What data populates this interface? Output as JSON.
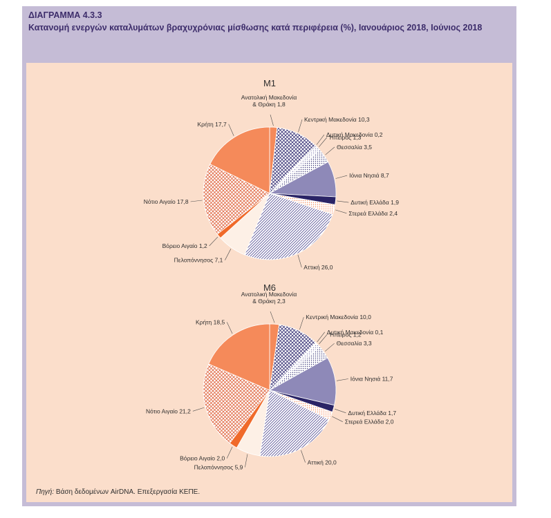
{
  "figure": {
    "label": "ΔΙΑΓΡΑΜΜΑ 4.3.3",
    "title": "Κατανομή ενεργών καταλυμάτων βραχυχρόνιας μίσθωσης κατά περιφέρεια (%), Ιανουάριος 2018, Ιούνιος 2018",
    "source_prefix": "Πηγή:",
    "source_text": " Βάση δεδομένων AirDNA. Επεξεργασία ΚΕΠΕ."
  },
  "styles": {
    "Ανατολική Μακεδονία & Θράκη": {
      "fill": "#f58a5a",
      "pattern": "solid"
    },
    "Κεντρική Μακεδονία": {
      "fill": "#3b3577",
      "pattern": "crosshatch"
    },
    "Δυτική Μακεδονία": {
      "fill": "#3b3577",
      "pattern": "solid"
    },
    "Ήπειρος": {
      "fill": "#8e89b8",
      "pattern": "dots"
    },
    "Θεσσαλία": {
      "fill": "#3b3577",
      "pattern": "dots"
    },
    "Ιόνια Νησιά": {
      "fill": "#8e89b8",
      "pattern": "solid"
    },
    "Δυτική Ελλάδα": {
      "fill": "#2a2466",
      "pattern": "solid"
    },
    "Στερεά Ελλάδα": {
      "fill": "#f58a5a",
      "pattern": "dots"
    },
    "Αττική": {
      "fill": "#5a5599",
      "pattern": "diagonal"
    },
    "Πελοπόννησος": {
      "fill": "#fdf0e6",
      "pattern": "solid"
    },
    "Βόρειο Αιγαίο": {
      "fill": "#f06a2a",
      "pattern": "solid"
    },
    "Νότιο Αιγαίο": {
      "fill": "#e06a45",
      "pattern": "crosshatch"
    },
    "Κρήτη": {
      "fill": "#f58a5a",
      "pattern": "solid"
    }
  },
  "chart_data": [
    {
      "type": "pie",
      "title": "M1",
      "slices": [
        {
          "label": "Ανατολική Μακεδονία & Θράκη",
          "value": 1.8,
          "text": "Ανατολική Μακεδονία\n& Θράκη 1,8"
        },
        {
          "label": "Κεντρική Μακεδονία",
          "value": 10.3,
          "text": "Κεντρική Μακεδονία 10,3"
        },
        {
          "label": "Δυτική Μακεδονία",
          "value": 0.2,
          "text": "Δυτική Μακεδονία 0,2"
        },
        {
          "label": "Ήπειρος",
          "value": 1.3,
          "text": "Ήπειρος 1,3"
        },
        {
          "label": "Θεσσαλία",
          "value": 3.5,
          "text": "Θεσσαλία 3,5"
        },
        {
          "label": "Ιόνια Νησιά",
          "value": 8.7,
          "text": "Ιόνια Νησιά 8,7"
        },
        {
          "label": "Δυτική Ελλάδα",
          "value": 1.9,
          "text": "Δυτική Ελλάδα 1,9"
        },
        {
          "label": "Στερεά Ελλάδα",
          "value": 2.4,
          "text": "Στερεά Ελλάδα 2,4"
        },
        {
          "label": "Αττική",
          "value": 26.0,
          "text": "Αττική 26,0"
        },
        {
          "label": "Πελοπόννησος",
          "value": 7.1,
          "text": "Πελοπόννησος 7,1"
        },
        {
          "label": "Βόρειο Αιγαίο",
          "value": 1.2,
          "text": "Βόρειο Αιγαίο 1,2"
        },
        {
          "label": "Νότιο Αιγαίο",
          "value": 17.8,
          "text": "Νότιο Αιγαίο 17,8"
        },
        {
          "label": "Κρήτη",
          "value": 17.7,
          "text": "Κρήτη 17,7"
        }
      ]
    },
    {
      "type": "pie",
      "title": "M6",
      "slices": [
        {
          "label": "Ανατολική Μακεδονία & Θράκη",
          "value": 2.3,
          "text": "Ανατολική Μακεδονία\n& Θράκη 2,3"
        },
        {
          "label": "Κεντρική Μακεδονία",
          "value": 10.0,
          "text": "Κεντρική Μακεδονία 10,0"
        },
        {
          "label": "Δυτική Μακεδονία",
          "value": 0.1,
          "text": "Δυτική Μακεδονία 0,1"
        },
        {
          "label": "Ήπειρος",
          "value": 1.2,
          "text": "Ήπειρος 1,2"
        },
        {
          "label": "Θεσσαλία",
          "value": 3.3,
          "text": "Θεσσαλία 3,3"
        },
        {
          "label": "Ιόνια Νησιά",
          "value": 11.7,
          "text": "Ιόνια Νησιά 11,7"
        },
        {
          "label": "Δυτική Ελλάδα",
          "value": 1.7,
          "text": "Δυτική Ελλάδα 1,7"
        },
        {
          "label": "Στερεά Ελλάδα",
          "value": 2.0,
          "text": "Στερεά Ελλάδα 2,0"
        },
        {
          "label": "Αττική",
          "value": 20.0,
          "text": "Αττική 20,0"
        },
        {
          "label": "Πελοπόννησος",
          "value": 5.9,
          "text": "Πελοπόννησος 5,9"
        },
        {
          "label": "Βόρειο Αιγαίο",
          "value": 2.0,
          "text": "Βόρειο Αιγαίο 2,0"
        },
        {
          "label": "Νότιο Αιγαίο",
          "value": 21.2,
          "text": "Νότιο Αιγαίο 21,2"
        },
        {
          "label": "Κρήτη",
          "value": 18.5,
          "text": "Κρήτη 18,5"
        }
      ]
    }
  ]
}
